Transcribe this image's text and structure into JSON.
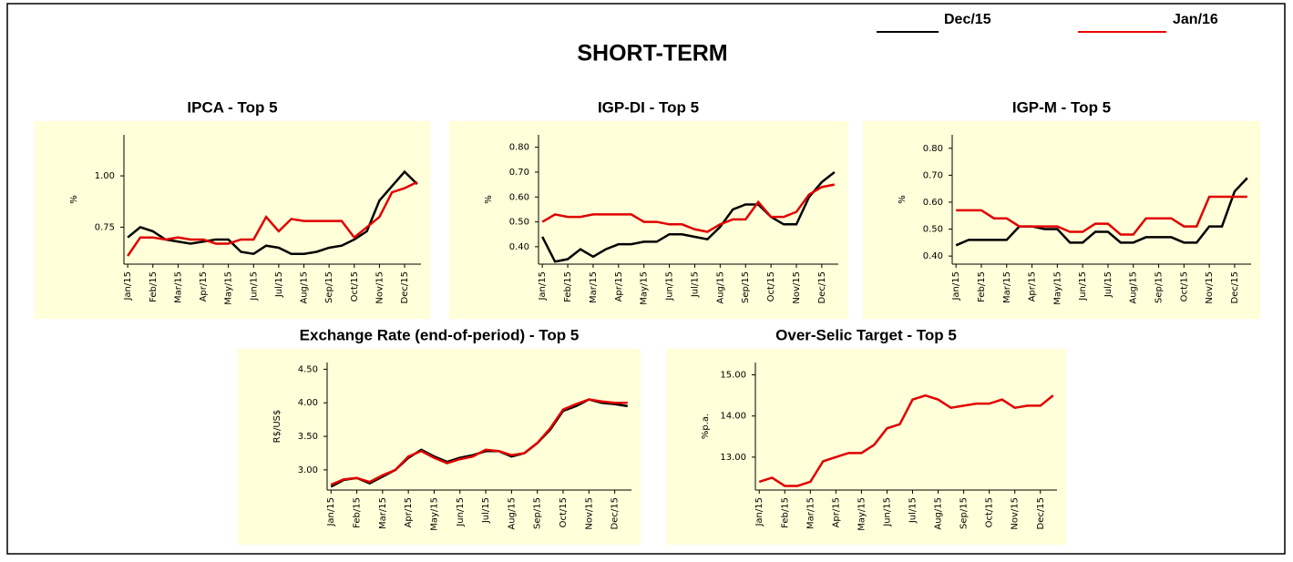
{
  "title": "SHORT-TERM",
  "chart_data": [
    {
      "type": "line",
      "title": "IPCA - Top 5",
      "ylabel": "%",
      "categories": [
        "Jan/15",
        null,
        "Feb/15",
        null,
        "Mar/15",
        null,
        "Apr/15",
        null,
        "May/15",
        null,
        "Jun/15",
        null,
        "Jul/15",
        null,
        "Aug/15",
        null,
        "Sep/15",
        null,
        "Oct/15",
        null,
        "Nov/15",
        null,
        "Dec/15",
        null
      ],
      "ylim": [
        0.57,
        1.2
      ],
      "yticks": [
        {
          "value": 0.75,
          "label": "0.75"
        },
        {
          "value": 1,
          "label": "1.00"
        }
      ],
      "series": [
        {
          "name": "Dec/15",
          "color": "#000000",
          "values": [
            0.7,
            0.75,
            0.73,
            0.69,
            0.68,
            0.67,
            0.68,
            0.69,
            0.69,
            0.63,
            0.62,
            0.66,
            0.65,
            0.62,
            0.62,
            0.63,
            0.65,
            0.66,
            0.69,
            0.73,
            0.88,
            0.95,
            1.02,
            0.96
          ]
        },
        {
          "name": "Jan/16",
          "color": "#e00000",
          "values": [
            0.61,
            0.7,
            0.7,
            0.69,
            0.7,
            0.69,
            0.69,
            0.67,
            0.67,
            0.69,
            0.69,
            0.8,
            0.73,
            0.79,
            0.78,
            0.78,
            0.78,
            0.78,
            0.7,
            0.75,
            0.8,
            0.92,
            0.94,
            0.97
          ]
        }
      ]
    },
    {
      "type": "line",
      "title": "IGP-DI - Top 5",
      "ylabel": "%",
      "categories": [
        "Jan/15",
        null,
        "Feb/15",
        null,
        "Mar/15",
        null,
        "Apr/15",
        null,
        "May/15",
        null,
        "Jun/15",
        null,
        "Jul/15",
        null,
        "Aug/15",
        null,
        "Sep/15",
        null,
        "Oct/15",
        null,
        "Nov/15",
        null,
        "Dec/15",
        null
      ],
      "ylim": [
        0.33,
        0.85
      ],
      "yticks": [
        {
          "value": 0.4,
          "label": "0.40"
        },
        {
          "value": 0.5,
          "label": "0.50"
        },
        {
          "value": 0.6,
          "label": "0.60"
        },
        {
          "value": 0.7,
          "label": "0.70"
        },
        {
          "value": 0.8,
          "label": "0.80"
        }
      ],
      "series": [
        {
          "name": "Dec/15",
          "color": "#000000",
          "values": [
            0.44,
            0.34,
            0.35,
            0.39,
            0.36,
            0.39,
            0.41,
            0.41,
            0.42,
            0.42,
            0.45,
            0.45,
            0.44,
            0.43,
            0.48,
            0.55,
            0.57,
            0.57,
            0.52,
            0.49,
            0.49,
            0.6,
            0.66,
            0.7
          ]
        },
        {
          "name": "Jan/16",
          "color": "#e00000",
          "values": [
            0.5,
            0.53,
            0.52,
            0.52,
            0.53,
            0.53,
            0.53,
            0.53,
            0.5,
            0.5,
            0.49,
            0.49,
            0.47,
            0.46,
            0.49,
            0.51,
            0.51,
            0.58,
            0.52,
            0.52,
            0.54,
            0.61,
            0.64,
            0.65
          ]
        }
      ]
    },
    {
      "type": "line",
      "title": "IGP-M - Top 5",
      "ylabel": "%",
      "categories": [
        "Jan/15",
        null,
        "Feb/15",
        null,
        "Mar/15",
        null,
        "Apr/15",
        null,
        "May/15",
        null,
        "Jun/15",
        null,
        "Jul/15",
        null,
        "Aug/15",
        null,
        "Sep/15",
        null,
        "Oct/15",
        null,
        "Nov/15",
        null,
        "Dec/15",
        null
      ],
      "ylim": [
        0.37,
        0.85
      ],
      "yticks": [
        {
          "value": 0.4,
          "label": "0.40"
        },
        {
          "value": 0.5,
          "label": "0.50"
        },
        {
          "value": 0.6,
          "label": "0.60"
        },
        {
          "value": 0.7,
          "label": "0.70"
        },
        {
          "value": 0.8,
          "label": "0.80"
        }
      ],
      "series": [
        {
          "name": "Dec/15",
          "color": "#000000",
          "values": [
            0.44,
            0.46,
            0.46,
            0.46,
            0.46,
            0.51,
            0.51,
            0.5,
            0.5,
            0.45,
            0.45,
            0.49,
            0.49,
            0.45,
            0.45,
            0.47,
            0.47,
            0.47,
            0.45,
            0.45,
            0.51,
            0.51,
            0.64,
            0.69
          ]
        },
        {
          "name": "Jan/16",
          "color": "#e00000",
          "values": [
            0.57,
            0.57,
            0.57,
            0.54,
            0.54,
            0.51,
            0.51,
            0.51,
            0.51,
            0.49,
            0.49,
            0.52,
            0.52,
            0.48,
            0.48,
            0.54,
            0.54,
            0.54,
            0.51,
            0.51,
            0.62,
            0.62,
            0.62,
            0.62
          ]
        }
      ]
    },
    {
      "type": "line",
      "title": "Exchange Rate (end-of-period) - Top 5",
      "ylabel": "R$/US$",
      "categories": [
        "Jan/15",
        null,
        "Feb/15",
        null,
        "Mar/15",
        null,
        "Apr/15",
        null,
        "May/15",
        null,
        "Jun/15",
        null,
        "Jul/15",
        null,
        "Aug/15",
        null,
        "Sep/15",
        null,
        "Oct/15",
        null,
        "Nov/15",
        null,
        "Dec/15",
        null
      ],
      "ylim": [
        2.7,
        4.6
      ],
      "yticks": [
        {
          "value": 3,
          "label": "3.00"
        },
        {
          "value": 3.5,
          "label": "3.50"
        },
        {
          "value": 4,
          "label": "4.00"
        },
        {
          "value": 4.5,
          "label": "4.50"
        }
      ],
      "series": [
        {
          "name": "Dec/15",
          "color": "#000000",
          "values": [
            2.75,
            2.85,
            2.88,
            2.8,
            2.9,
            3.0,
            3.18,
            3.3,
            3.2,
            3.12,
            3.18,
            3.22,
            3.28,
            3.28,
            3.2,
            3.25,
            3.4,
            3.6,
            3.88,
            3.95,
            4.05,
            4.0,
            3.98,
            3.95
          ]
        },
        {
          "name": "Jan/16",
          "color": "#e00000",
          "values": [
            2.78,
            2.86,
            2.88,
            2.82,
            2.92,
            3.0,
            3.2,
            3.28,
            3.18,
            3.1,
            3.16,
            3.2,
            3.3,
            3.28,
            3.22,
            3.25,
            3.4,
            3.62,
            3.9,
            3.98,
            4.05,
            4.02,
            4.0,
            4.0
          ]
        }
      ]
    },
    {
      "type": "line",
      "title": "Over-Selic Target - Top 5",
      "ylabel": "%p.a.",
      "categories": [
        "Jan/15",
        null,
        "Feb/15",
        null,
        "Mar/15",
        null,
        "Apr/15",
        null,
        "May/15",
        null,
        "Jun/15",
        null,
        "Jul/15",
        null,
        "Aug/15",
        null,
        "Sep/15",
        null,
        "Oct/15",
        null,
        "Nov/15",
        null,
        "Dec/15",
        null
      ],
      "ylim": [
        12.2,
        15.3
      ],
      "yticks": [
        {
          "value": 13,
          "label": "13.00"
        },
        {
          "value": 14,
          "label": "14.00"
        },
        {
          "value": 15,
          "label": "15.00"
        }
      ],
      "series": [
        {
          "name": "Jan/16",
          "color": "#e00000",
          "values": [
            12.4,
            12.5,
            12.3,
            12.3,
            12.4,
            12.9,
            13.0,
            13.1,
            13.1,
            13.3,
            13.7,
            13.8,
            14.4,
            14.5,
            14.4,
            14.2,
            14.25,
            14.3,
            14.3,
            14.4,
            14.2,
            14.25,
            14.25,
            14.5
          ]
        }
      ]
    }
  ]
}
